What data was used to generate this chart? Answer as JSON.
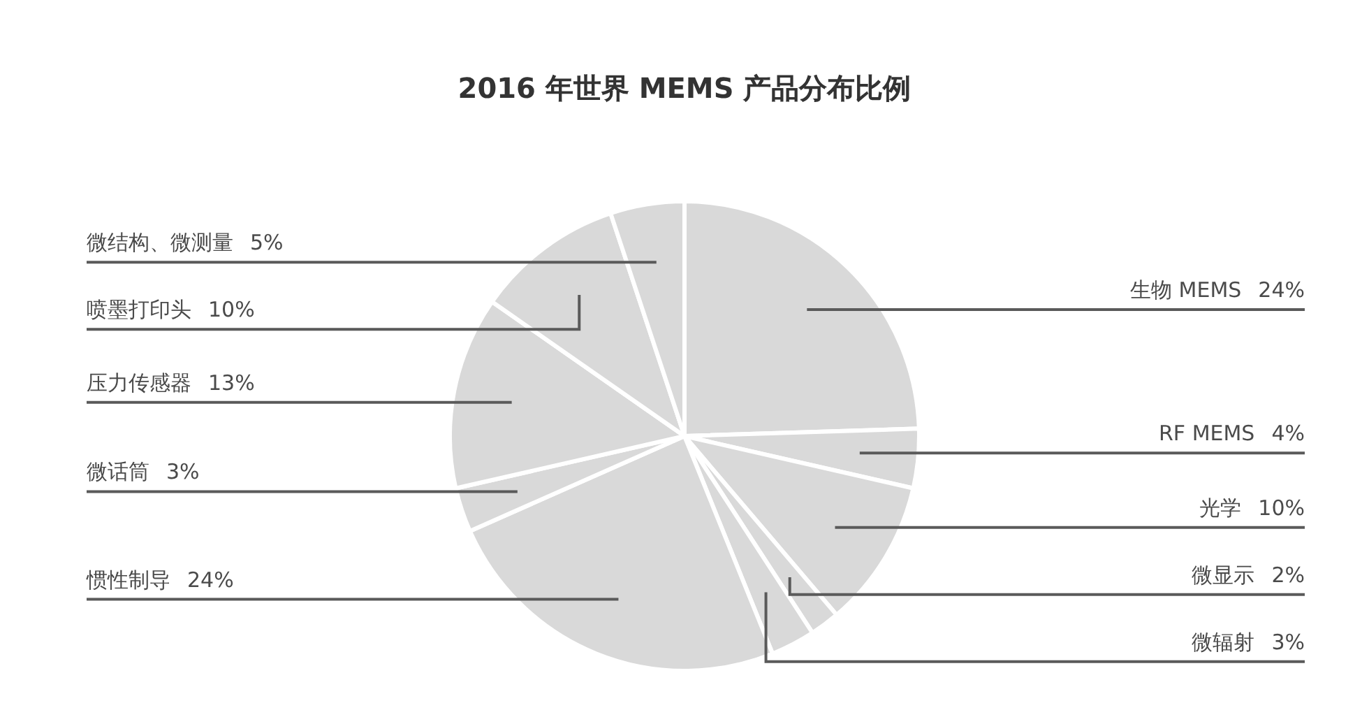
{
  "chart_data": {
    "type": "pie",
    "title": "2016 年世界 MEMS 产品分布比例",
    "categories": [
      "生物 MEMS",
      "RF MEMS",
      "光学",
      "微显示",
      "微辐射",
      "惯性制导",
      "微话筒",
      "压力传感器",
      "喷墨打印头",
      "微结构、微测量"
    ],
    "values": [
      24,
      4,
      10,
      2,
      3,
      24,
      3,
      13,
      10,
      5
    ],
    "value_labels": [
      "24%",
      "4%",
      "10%",
      "2%",
      "3%",
      "24%",
      "3%",
      "13%",
      "10%",
      "5%"
    ],
    "colors": [
      "#d9d9d9",
      "#d9d9d9",
      "#d9d9d9",
      "#d9d9d9",
      "#d9d9d9",
      "#d9d9d9",
      "#d9d9d9",
      "#d9d9d9",
      "#d9d9d9",
      "#d9d9d9"
    ]
  }
}
